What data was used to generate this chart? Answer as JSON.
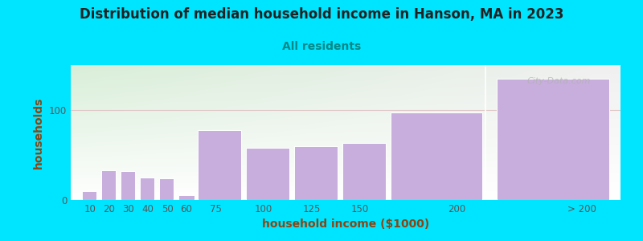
{
  "title": "Distribution of median household income in Hanson, MA in 2023",
  "subtitle": "All residents",
  "xlabel": "household income ($1000)",
  "ylabel": "households",
  "bar_color": "#c8aedd",
  "bar_edge_color": "#ffffff",
  "background_outer": "#00e5ff",
  "background_inner_left": "#d8eed8",
  "background_inner_right": "#f0f0f0",
  "title_color": "#222222",
  "subtitle_color": "#008888",
  "axis_label_color": "#8b4513",
  "tick_label_color": "#555555",
  "grid_color": "#e0c8c8",
  "watermark": "City-Data.com",
  "values": [
    10,
    33,
    32,
    25,
    24,
    5,
    78,
    58,
    60,
    63,
    97,
    135
  ],
  "bar_lefts": [
    5,
    15,
    25,
    35,
    45,
    55,
    65,
    90,
    115,
    140,
    165,
    220
  ],
  "bar_widths": [
    9,
    9,
    9,
    9,
    9,
    10,
    24,
    24,
    24,
    24,
    49,
    60
  ],
  "xtick_positions": [
    10,
    20,
    30,
    40,
    50,
    60,
    75,
    100,
    125,
    150,
    200,
    265
  ],
  "xtick_labels": [
    "10",
    "20",
    "30",
    "40",
    "50",
    "60",
    "75",
    "100",
    "125",
    "150",
    "200",
    "> 200"
  ],
  "xlim": [
    0,
    285
  ],
  "ylim": [
    0,
    150
  ],
  "ytick_positions": [
    0,
    100
  ],
  "ytick_labels": [
    "0",
    "100"
  ],
  "title_fontsize": 12,
  "subtitle_fontsize": 10,
  "axis_label_fontsize": 10,
  "tick_fontsize": 8.5,
  "separator_x": 215
}
